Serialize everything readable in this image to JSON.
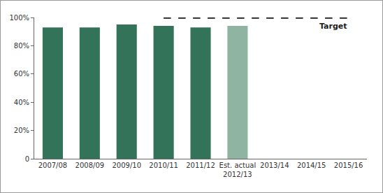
{
  "chart_data": {
    "type": "bar",
    "categories": [
      "2007/08",
      "2008/09",
      "2009/10",
      "2010/11",
      "2011/12",
      "Est. actual 2012/13",
      "2013/14",
      "2014/15",
      "2015/16"
    ],
    "series": [
      {
        "type": "bar",
        "values": [
          93,
          93,
          95,
          94,
          93,
          94,
          null,
          null,
          null
        ],
        "colors": [
          "#33735a",
          "#33735a",
          "#33735a",
          "#33735a",
          "#33735a",
          "#8fb5a2",
          "#33735a",
          "#33735a",
          "#33735a"
        ]
      },
      {
        "name": "Target",
        "type": "line",
        "line_style": "dashed",
        "color": "#1a1a1a",
        "values": [
          null,
          null,
          null,
          100,
          100,
          100,
          100,
          100,
          100
        ]
      }
    ],
    "ylim": [
      0,
      100
    ],
    "yticks": [
      0,
      {
        "value": 20,
        "label": "20%"
      },
      {
        "value": 40,
        "label": "40%"
      },
      {
        "value": 60,
        "label": "60%"
      },
      {
        "value": 80,
        "label": "80%"
      },
      {
        "value": 100,
        "label": "100%"
      }
    ],
    "grid": false
  }
}
